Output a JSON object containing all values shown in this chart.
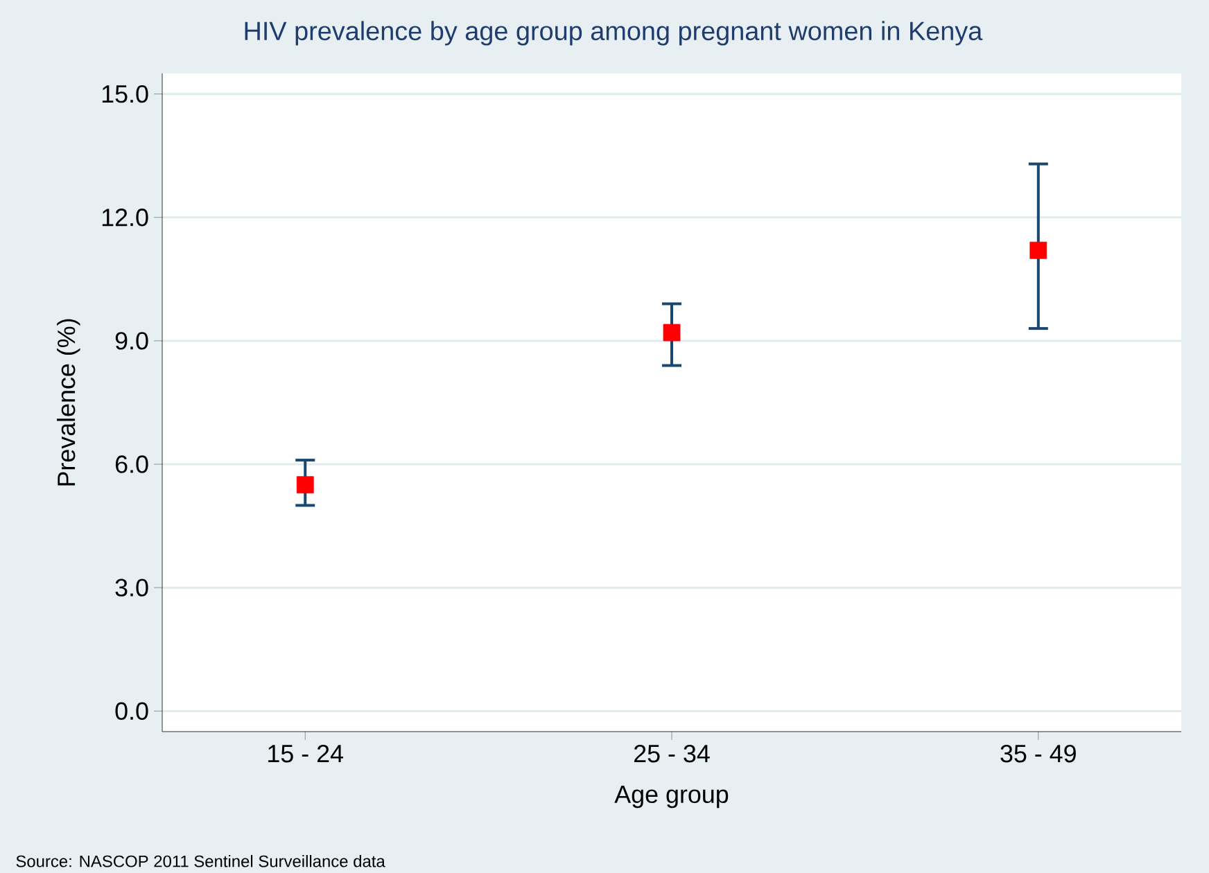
{
  "chart_data": {
    "type": "scatter",
    "title": "HIV prevalence by age group among pregnant women in Kenya",
    "xlabel": "Age group",
    "ylabel": "Prevalence (%)",
    "categories": [
      "15 - 24",
      "25 - 34",
      "35 - 49"
    ],
    "values": [
      5.5,
      9.2,
      11.2
    ],
    "errors": [
      [
        5.0,
        6.1
      ],
      [
        8.4,
        9.9
      ],
      [
        9.3,
        13.3
      ]
    ],
    "color": "#ff0000",
    "marker": "square",
    "grid": "y",
    "ylim": [
      -0.5,
      15.5
    ],
    "yticks": [
      {
        "value": 0,
        "label": "0.0"
      },
      {
        "value": 3,
        "label": "3.0"
      },
      {
        "value": 6,
        "label": "6.0"
      },
      {
        "value": 9,
        "label": "9.0"
      },
      {
        "value": 12,
        "label": "12.0"
      },
      {
        "value": 15,
        "label": "15.0"
      }
    ],
    "annotations": [
      "Source: NASCOP 2011 Sentinel Surveillance data"
    ]
  }
}
